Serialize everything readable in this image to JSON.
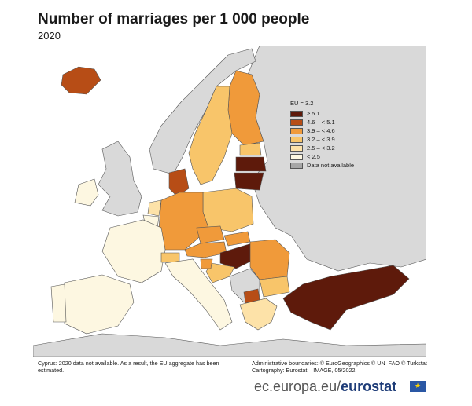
{
  "title": "Number of marriages per 1 000 people",
  "subtitle": "2020",
  "legend": {
    "reference": "EU = 3.2",
    "classes": [
      {
        "label": "≥ 5.1",
        "color": "#5e1a0b"
      },
      {
        "label": "4.6 – < 5.1",
        "color": "#b74d16"
      },
      {
        "label": "3.9 – < 4.6",
        "color": "#f09a3a"
      },
      {
        "label": "3.2 – < 3.9",
        "color": "#f8c56a"
      },
      {
        "label": "2.5 – < 3.2",
        "color": "#fde2a8"
      },
      {
        "label": "< 2.5",
        "color": "#fdf7e1"
      },
      {
        "label": "Data not available",
        "color": "#a6a6a6"
      }
    ]
  },
  "footnote_left": "Cyprus: 2020 data not available. As a result, the EU aggregate has been estimated.",
  "footnote_right": {
    "line1": "Administrative boundaries: © EuroGeographics © UN–FAO © Turkstat",
    "line2": "Cartography: Eurostat – IMAGE, 05/2022"
  },
  "brand": {
    "prefix": "ec.europa.eu/",
    "name": "eurostat"
  },
  "colors": {
    "sea": "#ffffff",
    "non_eu": "#d9d9d9",
    "border": "#555555"
  }
}
